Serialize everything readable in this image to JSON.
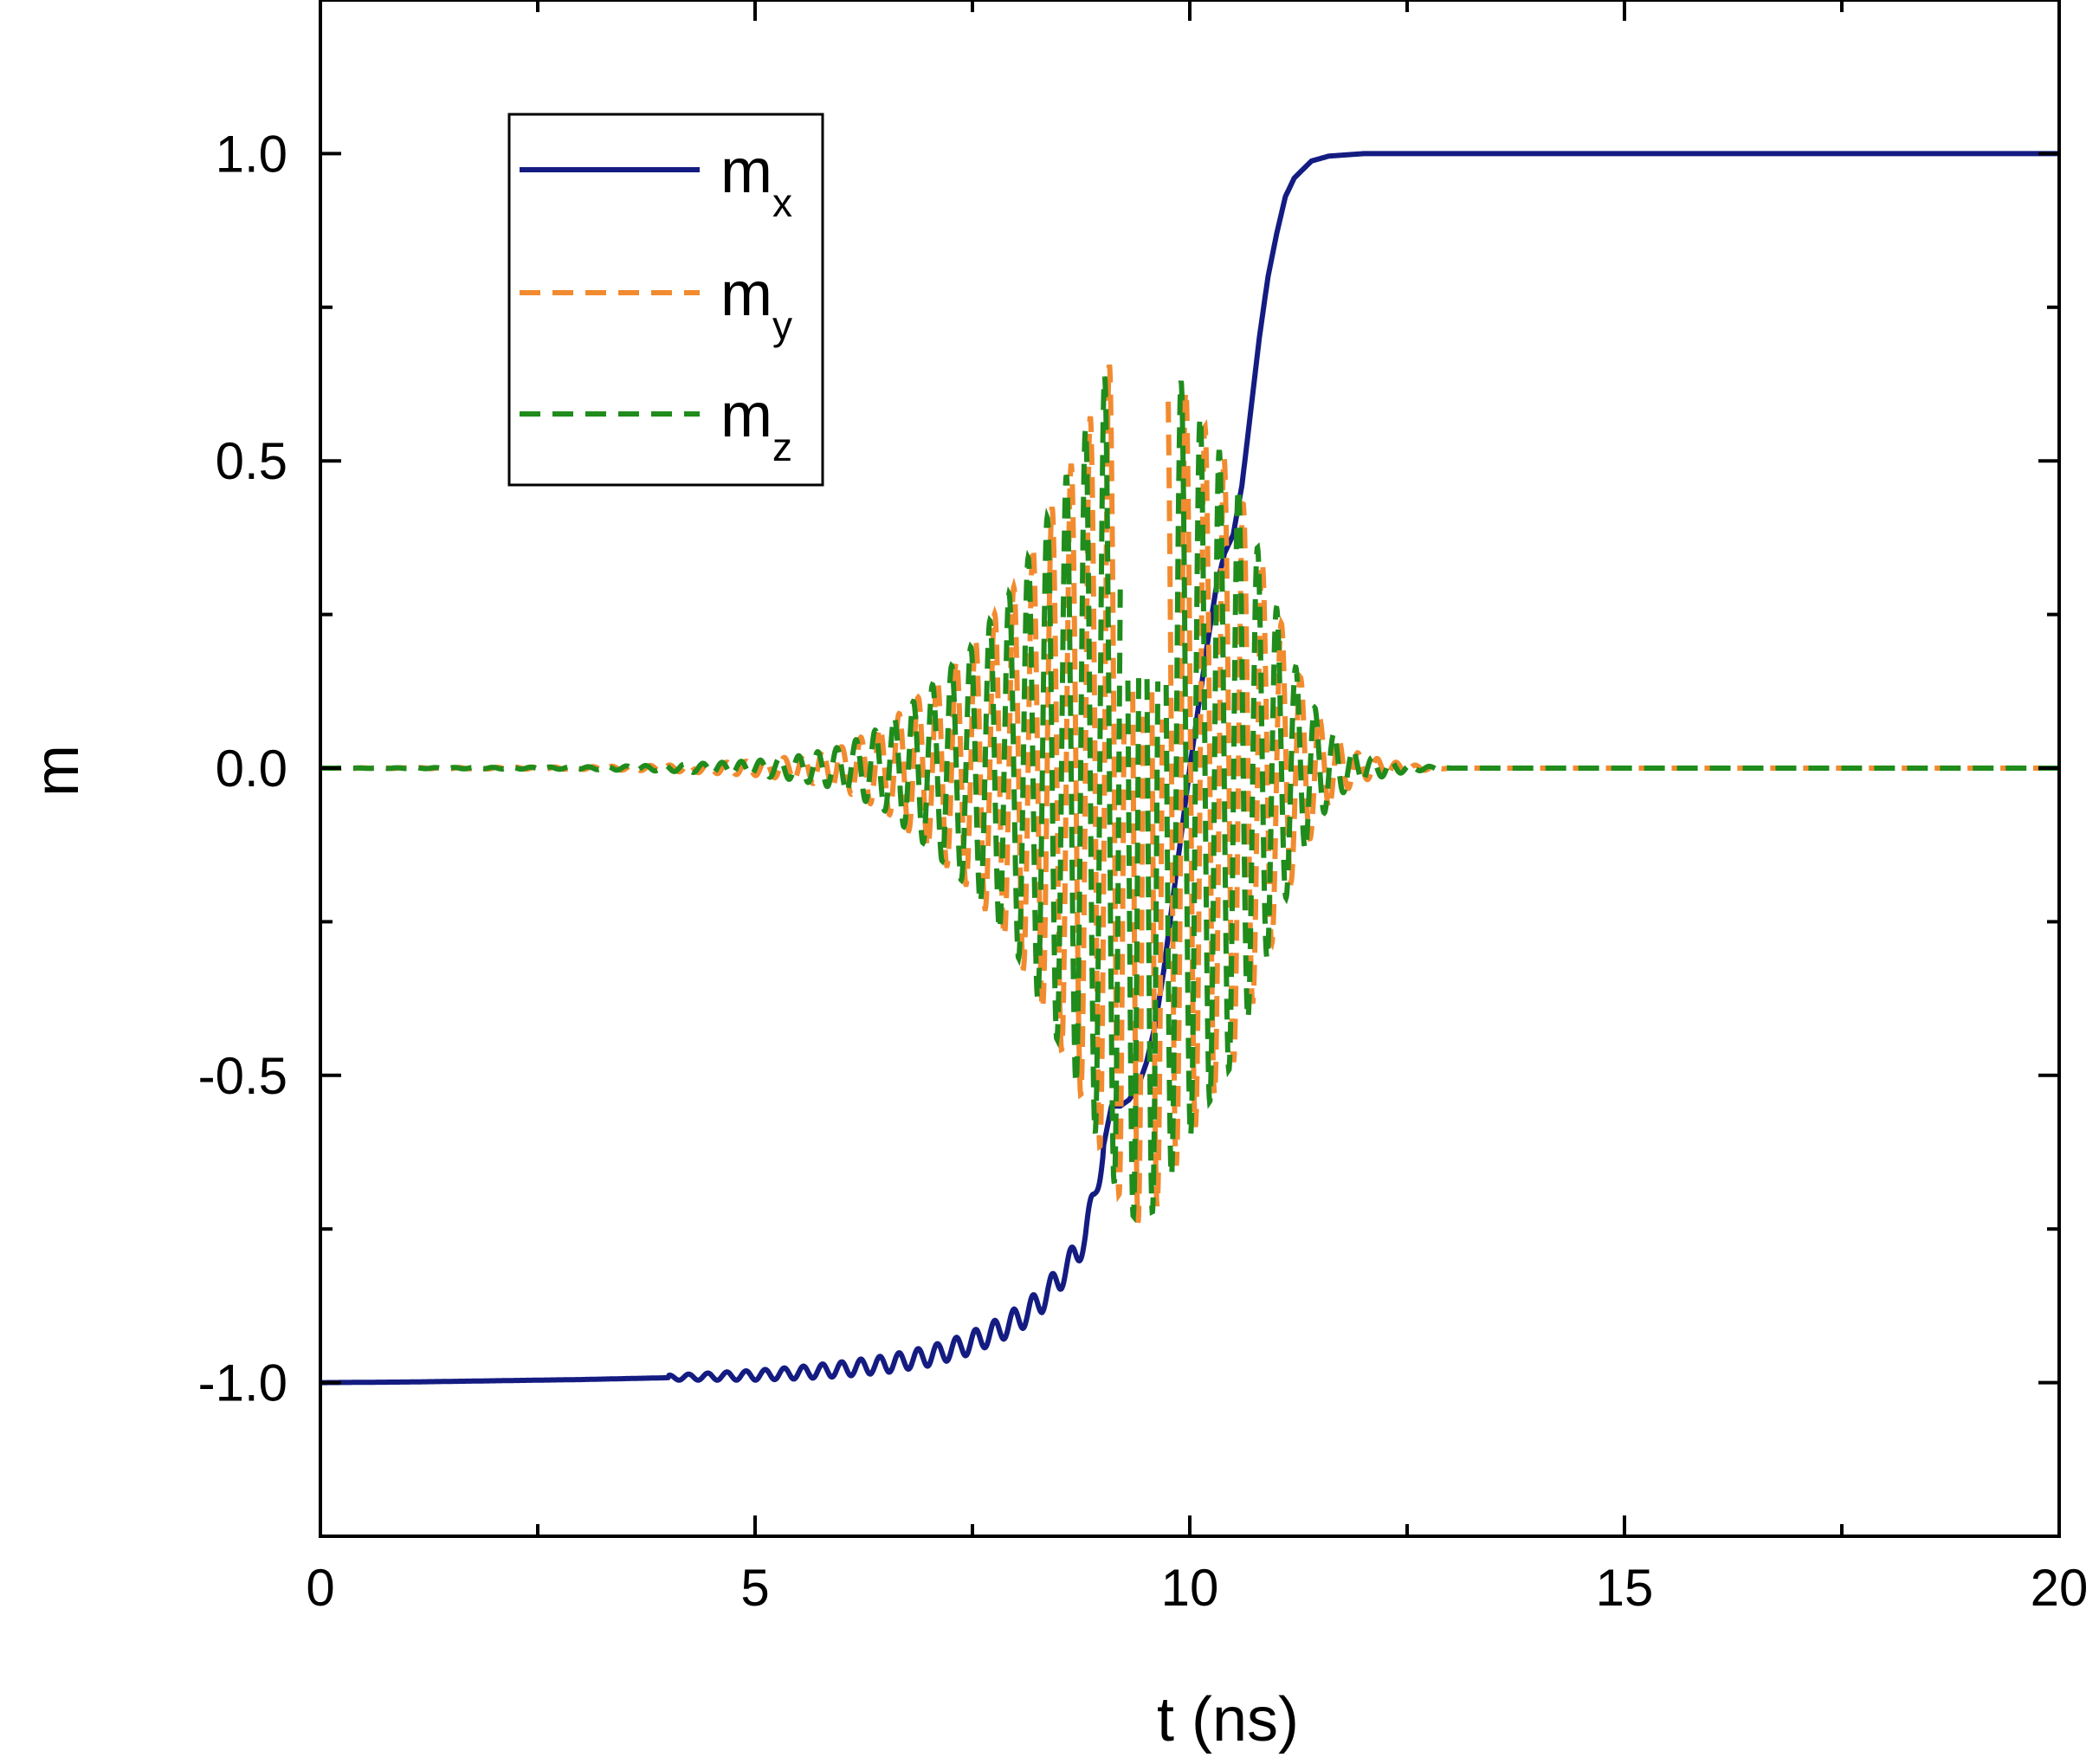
{
  "chart_data": {
    "type": "line",
    "title": "",
    "xlabel": "t (ns)",
    "ylabel": "m",
    "xlim": [
      0,
      20
    ],
    "ylim": [
      -1.25,
      1.25
    ],
    "xticks": [
      0,
      5,
      10,
      15,
      20
    ],
    "xtick_labels": [
      "0",
      "5",
      "10",
      "15",
      "20"
    ],
    "yticks": [
      -1.0,
      -0.5,
      0.0,
      0.5,
      1.0
    ],
    "ytick_labels": [
      "-1.0",
      "-0.5",
      "0.0",
      "0.5",
      "1.0"
    ],
    "grid": false,
    "legend_position": "top-left",
    "legend": [
      {
        "base": "m",
        "sub": "x"
      },
      {
        "base": "m",
        "sub": "y"
      },
      {
        "base": "m",
        "sub": "z"
      }
    ],
    "series": [
      {
        "name": "m_x",
        "color": "#141c82",
        "style": "solid",
        "x": [
          0,
          1,
          2,
          3,
          4,
          5,
          5.5,
          6,
          6.5,
          7,
          7.4,
          7.8,
          8.1,
          8.3,
          8.5,
          8.7,
          8.8,
          8.9,
          9.0,
          9.1,
          9.2,
          9.3,
          9.4,
          9.5,
          9.6,
          9.7,
          9.8,
          9.9,
          10.0,
          10.1,
          10.2,
          10.3,
          10.4,
          10.5,
          10.6,
          10.7,
          10.8,
          10.9,
          11.0,
          11.1,
          11.2,
          11.4,
          11.6,
          12.0,
          13,
          20
        ],
        "y": [
          -1.0,
          -0.999,
          -0.997,
          -0.995,
          -0.992,
          -0.988,
          -0.984,
          -0.978,
          -0.97,
          -0.957,
          -0.94,
          -0.915,
          -0.89,
          -0.865,
          -0.83,
          -0.79,
          -0.76,
          -0.7,
          -0.62,
          -0.55,
          -0.55,
          -0.54,
          -0.52,
          -0.48,
          -0.42,
          -0.33,
          -0.22,
          -0.11,
          0.0,
          0.1,
          0.2,
          0.29,
          0.35,
          0.38,
          0.46,
          0.58,
          0.7,
          0.8,
          0.87,
          0.93,
          0.96,
          0.988,
          0.996,
          1.0,
          1.0,
          1.0
        ]
      },
      {
        "name": "m_y",
        "color": "#f28b2f",
        "style": "dashed",
        "envelope_t": [
          0,
          3,
          4,
          5,
          5.5,
          6,
          6.5,
          7,
          7.5,
          8,
          8.5,
          8.8,
          9.0,
          9.2,
          9.4,
          9.6,
          9.8,
          10.0,
          10.2,
          10.5,
          10.8,
          11.0,
          11.2,
          11.5,
          11.8,
          12.0,
          12.5,
          13,
          20
        ],
        "envelope_amplitude": [
          0.0,
          0.002,
          0.005,
          0.012,
          0.02,
          0.035,
          0.07,
          0.13,
          0.2,
          0.3,
          0.45,
          0.55,
          0.63,
          0.7,
          0.74,
          0.72,
          0.66,
          0.6,
          0.55,
          0.48,
          0.35,
          0.26,
          0.17,
          0.08,
          0.035,
          0.02,
          0.006,
          0.0,
          0.0
        ],
        "period_ns": 0.22,
        "x_gap_ns": [
          9.2,
          9.75
        ]
      },
      {
        "name": "m_z",
        "color": "#1f8c1c",
        "style": "dashed",
        "envelope_t": [
          0,
          3,
          4,
          5,
          5.5,
          6,
          6.5,
          7,
          7.5,
          8,
          8.5,
          8.8,
          9.0,
          9.2,
          9.4,
          9.6,
          9.8,
          10.0,
          10.2,
          10.5,
          10.8,
          11.0,
          11.2,
          11.5,
          11.8,
          12.0,
          12.5,
          13,
          20
        ],
        "envelope_amplitude": [
          0.0,
          0.002,
          0.005,
          0.012,
          0.02,
          0.035,
          0.07,
          0.13,
          0.2,
          0.3,
          0.45,
          0.55,
          0.63,
          0.7,
          0.74,
          0.72,
          0.66,
          0.6,
          0.55,
          0.48,
          0.35,
          0.26,
          0.17,
          0.08,
          0.035,
          0.02,
          0.006,
          0.0,
          0.0
        ],
        "period_ns": 0.22,
        "phase_shift": 1.5708,
        "x_gap_ns": [
          9.2,
          9.75
        ]
      }
    ]
  }
}
